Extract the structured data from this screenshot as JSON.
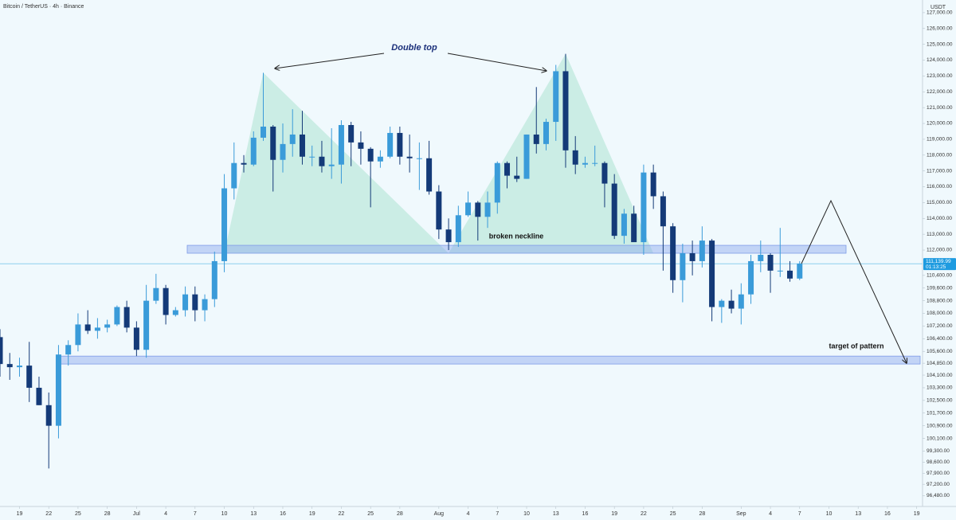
{
  "chart_data": {
    "type": "candlestick",
    "title": "Bitcoin / TetherUS · 4h · Binance",
    "currency": "USDT",
    "up_color": "#3a9bd9",
    "down_color": "#143a78",
    "x": [
      0,
      1,
      2,
      3,
      4,
      5,
      6,
      7,
      8,
      9,
      10,
      11,
      12,
      13,
      14,
      15,
      16,
      17,
      18,
      19,
      20,
      21,
      22,
      23,
      24,
      25,
      26,
      27,
      28,
      29,
      30,
      31,
      32,
      33,
      34,
      35,
      36,
      37,
      38,
      39,
      40,
      41,
      42,
      43,
      44,
      45,
      46,
      47,
      48,
      49,
      50,
      51,
      52,
      53,
      54,
      55,
      56,
      57,
      58,
      59,
      60,
      61,
      62,
      63,
      64,
      65,
      66,
      67,
      68,
      69,
      70,
      71,
      72,
      73,
      74,
      75,
      76,
      77,
      78,
      79,
      80,
      81,
      82
    ],
    "open": [
      106500,
      104800,
      104600,
      104700,
      103300,
      102200,
      100900,
      105400,
      106000,
      107300,
      106900,
      107100,
      107300,
      108400,
      107100,
      105700,
      108800,
      109600,
      107900,
      108200,
      109200,
      108200,
      108900,
      111300,
      115900,
      117500,
      117400,
      119100,
      119800,
      117700,
      118700,
      119300,
      117900,
      117900,
      117300,
      117400,
      119900,
      118800,
      118400,
      117600,
      117900,
      119400,
      117900,
      117800,
      117800,
      115700,
      113300,
      112500,
      114200,
      115000,
      114100,
      115000,
      117500,
      116700,
      116500,
      119300,
      118700,
      120100,
      123300,
      118300,
      117400,
      117500,
      117500,
      116200,
      112900,
      114300,
      112500,
      116900,
      115400,
      113500,
      110100,
      111800,
      111300,
      112600,
      108400,
      108800,
      108300,
      109200,
      111300,
      111700,
      110700,
      110700,
      110200
    ],
    "high": [
      107000,
      105500,
      105200,
      106200,
      104000,
      103000,
      106000,
      106300,
      108000,
      108200,
      107700,
      107600,
      108500,
      108800,
      107500,
      109800,
      110500,
      109800,
      108400,
      109700,
      109700,
      109200,
      111900,
      116800,
      118800,
      118000,
      119500,
      123200,
      119900,
      120000,
      120900,
      120800,
      118600,
      118900,
      119700,
      120200,
      120100,
      119500,
      118500,
      118300,
      119800,
      119800,
      119300,
      118800,
      118900,
      116100,
      114000,
      114800,
      115700,
      115100,
      115700,
      117600,
      117600,
      117900,
      119300,
      122300,
      120300,
      123700,
      124400,
      119200,
      117900,
      118600,
      117600,
      116800,
      114600,
      114800,
      117400,
      117400,
      115700,
      113700,
      112400,
      112600,
      113500,
      112700,
      108900,
      109500,
      109900,
      111700,
      112600,
      111800,
      113400,
      111300,
      111300
    ],
    "low": [
      104000,
      103800,
      104000,
      102400,
      102200,
      98200,
      100100,
      104700,
      105600,
      106700,
      106400,
      106800,
      107200,
      106800,
      105300,
      105200,
      108600,
      107300,
      107800,
      107800,
      107500,
      107500,
      108400,
      110600,
      115200,
      116900,
      117300,
      118900,
      115700,
      116900,
      117900,
      117400,
      117300,
      116900,
      116500,
      116200,
      117300,
      117400,
      114700,
      117200,
      117800,
      117400,
      116900,
      115800,
      115500,
      112700,
      112000,
      112200,
      114100,
      112600,
      113400,
      114300,
      115900,
      116300,
      116500,
      118100,
      118300,
      118900,
      117200,
      116800,
      117200,
      117300,
      114700,
      112700,
      112400,
      112600,
      111700,
      114600,
      110700,
      109300,
      108700,
      110400,
      110900,
      107500,
      107400,
      108000,
      107300,
      108600,
      110600,
      109300,
      110300,
      110000,
      110100
    ],
    "close": [
      104800,
      104600,
      104700,
      103300,
      102200,
      100900,
      105400,
      106000,
      107300,
      106900,
      107100,
      107300,
      108400,
      107100,
      105700,
      108800,
      109600,
      107900,
      108200,
      109200,
      108200,
      108900,
      111300,
      115900,
      117500,
      117400,
      119100,
      119800,
      117700,
      118700,
      119300,
      117900,
      117900,
      117300,
      117400,
      119900,
      118800,
      118400,
      117600,
      117900,
      119400,
      117900,
      117800,
      117800,
      115700,
      113300,
      112500,
      114200,
      115000,
      114100,
      115000,
      117500,
      116700,
      116500,
      119300,
      118700,
      120100,
      123300,
      118300,
      117400,
      117500,
      117500,
      116200,
      112900,
      114300,
      112500,
      116900,
      115400,
      113500,
      110100,
      111800,
      111300,
      112600,
      108400,
      108800,
      108300,
      109200,
      111300,
      111700,
      110700,
      110700,
      110200,
      111140
    ],
    "xlim": [
      0,
      94.6
    ],
    "xticks": [
      {
        "value": 2,
        "label": "19"
      },
      {
        "value": 5,
        "label": "22"
      },
      {
        "value": 8,
        "label": "25"
      },
      {
        "value": 11,
        "label": "28"
      },
      {
        "value": 14,
        "label": "Jul"
      },
      {
        "value": 17,
        "label": "4"
      },
      {
        "value": 20,
        "label": "7"
      },
      {
        "value": 23,
        "label": "10"
      },
      {
        "value": 26,
        "label": "13"
      },
      {
        "value": 29,
        "label": "16"
      },
      {
        "value": 32,
        "label": "19"
      },
      {
        "value": 35,
        "label": "22"
      },
      {
        "value": 38,
        "label": "25"
      },
      {
        "value": 41,
        "label": "28"
      },
      {
        "value": 45,
        "label": "Aug"
      },
      {
        "value": 48,
        "label": "4"
      },
      {
        "value": 51,
        "label": "7"
      },
      {
        "value": 54,
        "label": "10"
      },
      {
        "value": 57,
        "label": "13"
      },
      {
        "value": 60,
        "label": "16"
      },
      {
        "value": 63,
        "label": "19"
      },
      {
        "value": 66,
        "label": "22"
      },
      {
        "value": 69,
        "label": "25"
      },
      {
        "value": 72,
        "label": "28"
      },
      {
        "value": 76,
        "label": "Sep"
      },
      {
        "value": 79,
        "label": "4"
      },
      {
        "value": 82,
        "label": "7"
      },
      {
        "value": 85,
        "label": "10"
      },
      {
        "value": 88,
        "label": "13"
      },
      {
        "value": 91,
        "label": "16"
      },
      {
        "value": 94,
        "label": "19"
      }
    ],
    "ylim": [
      95800,
      127800
    ],
    "yticks": [
      {
        "value": 127000,
        "label": "127,000.00"
      },
      {
        "value": 126000,
        "label": "126,000.00"
      },
      {
        "value": 125000,
        "label": "125,000.00"
      },
      {
        "value": 124000,
        "label": "124,000.00"
      },
      {
        "value": 123000,
        "label": "123,000.00"
      },
      {
        "value": 122000,
        "label": "122,000.00"
      },
      {
        "value": 121000,
        "label": "121,000.00"
      },
      {
        "value": 120000,
        "label": "120,000.00"
      },
      {
        "value": 119000,
        "label": "119,000.00"
      },
      {
        "value": 118000,
        "label": "118,000.00"
      },
      {
        "value": 117000,
        "label": "117,000.00"
      },
      {
        "value": 116000,
        "label": "116,000.00"
      },
      {
        "value": 115000,
        "label": "115,000.00"
      },
      {
        "value": 114000,
        "label": "114,000.00"
      },
      {
        "value": 113000,
        "label": "113,000.00"
      },
      {
        "value": 112000,
        "label": "112,000.00"
      },
      {
        "value": 110400,
        "label": "110,400.00"
      },
      {
        "value": 109600,
        "label": "109,600.00"
      },
      {
        "value": 108800,
        "label": "108,800.00"
      },
      {
        "value": 108000,
        "label": "108,000.00"
      },
      {
        "value": 107200,
        "label": "107,200.00"
      },
      {
        "value": 106400,
        "label": "106,400.00"
      },
      {
        "value": 105600,
        "label": "105,600.00"
      },
      {
        "value": 104850,
        "label": "104,850.00"
      },
      {
        "value": 104100,
        "label": "104,100.00"
      },
      {
        "value": 103300,
        "label": "103,300.00"
      },
      {
        "value": 102500,
        "label": "102,500.00"
      },
      {
        "value": 101700,
        "label": "101,700.00"
      },
      {
        "value": 100900,
        "label": "100,900.00"
      },
      {
        "value": 100100,
        "label": "100,100.00"
      },
      {
        "value": 99300,
        "label": "99,300.00"
      },
      {
        "value": 98600,
        "label": "98,600.00"
      },
      {
        "value": 97900,
        "label": "97,900.00"
      },
      {
        "value": 97200,
        "label": "97,200.00"
      },
      {
        "value": 96480,
        "label": "96,480.00"
      }
    ],
    "last_price": {
      "value": 111139.99,
      "label": "111,139.99"
    },
    "countdown": "01:13:25",
    "neckline_zone": [
      111800,
      112300
    ],
    "target_zone": [
      104800,
      105300
    ],
    "annotations": {
      "pattern": "Double top",
      "neckline": "broken neckline",
      "target": "target of pattern"
    }
  }
}
